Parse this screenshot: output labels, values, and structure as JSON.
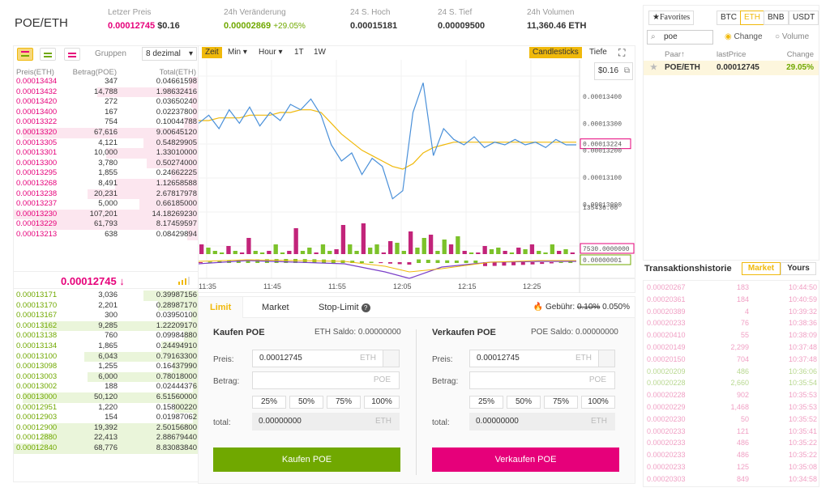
{
  "header": {
    "pair": "POE/ETH",
    "stats": [
      {
        "label": "Letzer Preis",
        "value": "0.00012745",
        "value2": "$0.16"
      },
      {
        "label": "24h Veränderung",
        "value": "0.00002869",
        "value2": "+29.05%"
      },
      {
        "label": "24 S. Hoch",
        "value": "0.00015181"
      },
      {
        "label": "24 S. Tief",
        "value": "0.00009500"
      },
      {
        "label": "24h Volumen",
        "value": "11,360.46 ETH"
      }
    ]
  },
  "orderbook": {
    "groups_label": "Gruppen",
    "decimals": "8 dezimal",
    "headers": [
      "Preis(ETH)",
      "Betrag(POE)",
      "Total(ETH)"
    ],
    "asks": [
      [
        "0.00013434",
        "347",
        "0.04661598",
        0.05
      ],
      [
        "0.00013432",
        "14,788",
        "1.98632416",
        0.55
      ],
      [
        "0.00013420",
        "272",
        "0.03650240",
        0.04
      ],
      [
        "0.00013400",
        "167",
        "0.02237800",
        0.03
      ],
      [
        "0.00013322",
        "754",
        "0.10044788",
        0.08
      ],
      [
        "0.00013320",
        "67,616",
        "9.00645120",
        0.95
      ],
      [
        "0.00013305",
        "4,121",
        "0.54829905",
        0.3
      ],
      [
        "0.00013301",
        "10,000",
        "1.33010000",
        0.5
      ],
      [
        "0.00013300",
        "3,780",
        "0.50274000",
        0.28
      ],
      [
        "0.00013295",
        "1,855",
        "0.24662225",
        0.15
      ],
      [
        "0.00013268",
        "8,491",
        "1.12658588",
        0.45
      ],
      [
        "0.00013238",
        "20,231",
        "2.67817978",
        0.6
      ],
      [
        "0.00013237",
        "5,000",
        "0.66185000",
        0.32
      ],
      [
        "0.00013230",
        "107,201",
        "14.18269230",
        1.0
      ],
      [
        "0.00013229",
        "61,793",
        "8.17459597",
        0.9
      ],
      [
        "0.00013213",
        "638",
        "0.08429894",
        0.06
      ]
    ],
    "last_price": "0.00012745 ↓",
    "bids": [
      [
        "0.00013171",
        "3,036",
        "0.39987156",
        0.3
      ],
      [
        "0.00013170",
        "2,201",
        "0.28987170",
        0.22
      ],
      [
        "0.00013167",
        "300",
        "0.03950100",
        0.04
      ],
      [
        "0.00013162",
        "9,285",
        "1.22209170",
        0.85
      ],
      [
        "0.00013138",
        "760",
        "0.09984880",
        0.08
      ],
      [
        "0.00013134",
        "1,865",
        "0.24494910",
        0.2
      ],
      [
        "0.00013100",
        "6,043",
        "0.79163300",
        0.62
      ],
      [
        "0.00013098",
        "1,255",
        "0.16437990",
        0.14
      ],
      [
        "0.00013003",
        "6,000",
        "0.78018000",
        0.6
      ],
      [
        "0.00013002",
        "188",
        "0.02444376",
        0.03
      ],
      [
        "0.00013000",
        "50,120",
        "6.51560000",
        0.95
      ],
      [
        "0.00012951",
        "1,220",
        "0.15800220",
        0.13
      ],
      [
        "0.00012903",
        "154",
        "0.01987062",
        0.03
      ],
      [
        "0.00012900",
        "19,392",
        "2.50156800",
        0.8
      ],
      [
        "0.00012880",
        "22,413",
        "2.88679440",
        0.85
      ],
      [
        "0.00012840",
        "68,776",
        "8.83083840",
        1.0
      ]
    ]
  },
  "chart": {
    "toolbar": [
      "Zeit",
      "Min ▾",
      "Hour ▾",
      "1T",
      "1W"
    ],
    "candlesticks": "Candlesticks",
    "depth": "Tiefe",
    "usd_tag": "$0.16",
    "price_labels": [
      "0.00013400",
      "0.00013300",
      "0.00013224",
      "0.00013200",
      "0.00013100",
      "0.00013000"
    ],
    "vol_labels": [
      "135436.00",
      "7530.0000000"
    ],
    "macd_label": "0.00000001",
    "time_labels": [
      "11:35",
      "11:45",
      "11:55",
      "12:05",
      "12:15",
      "12:25"
    ],
    "price": [
      0.000133,
      0.0001333,
      0.0001328,
      0.0001335,
      0.000133,
      0.0001336,
      0.0001329,
      0.0001334,
      0.0001331,
      0.0001337,
      0.0001335,
      0.0001339,
      0.0001333,
      0.0001322,
      0.0001316,
      0.0001319,
      0.0001311,
      0.0001317,
      0.0001314,
      0.0001302,
      0.0001305,
      0.0001334,
      0.0001345,
      0.0001318,
      0.0001328,
      0.0001324,
      0.0001322,
      0.0001325,
      0.0001321,
      0.0001323,
      0.0001322,
      0.0001324,
      0.0001322,
      0.0001323,
      0.0001321,
      0.0001324,
      0.0001322,
      0.0001322
    ],
    "ma": [
      0.0001331,
      0.0001331,
      0.0001332,
      0.0001332,
      0.0001332,
      0.0001333,
      0.0001333,
      0.0001333,
      0.0001334,
      0.0001334,
      0.0001335,
      0.0001335,
      0.0001334,
      0.000133,
      0.0001326,
      0.0001323,
      0.000132,
      0.0001318,
      0.0001316,
      0.0001314,
      0.0001313,
      0.0001315,
      0.0001319,
      0.0001321,
      0.0001322,
      0.0001323,
      0.0001323,
      0.0001323,
      0.0001323,
      0.0001323,
      0.0001323,
      0.0001323,
      0.0001323,
      0.0001323,
      0.0001323,
      0.0001323,
      0.0001323,
      0.0001323
    ],
    "volumes": [
      [
        0.3,
        "r"
      ],
      [
        0.2,
        "g"
      ],
      [
        0.1,
        "g"
      ],
      [
        0.05,
        "g"
      ],
      [
        0.25,
        "r"
      ],
      [
        0.1,
        "g"
      ],
      [
        0.05,
        "r"
      ],
      [
        0.5,
        "r"
      ],
      [
        0.1,
        "g"
      ],
      [
        0.05,
        "g"
      ],
      [
        0.1,
        "r"
      ],
      [
        0.3,
        "g"
      ],
      [
        0.05,
        "g"
      ],
      [
        0.1,
        "r"
      ],
      [
        0.8,
        "r"
      ],
      [
        0.1,
        "g"
      ],
      [
        0.2,
        "g"
      ],
      [
        0.05,
        "r"
      ],
      [
        0.3,
        "g"
      ],
      [
        0.1,
        "g"
      ],
      [
        0.15,
        "r"
      ],
      [
        0.9,
        "r"
      ],
      [
        0.3,
        "g"
      ],
      [
        0.1,
        "g"
      ],
      [
        0.95,
        "r"
      ],
      [
        0.2,
        "g"
      ],
      [
        0.3,
        "g"
      ],
      [
        0.05,
        "r"
      ],
      [
        0.4,
        "r"
      ],
      [
        0.35,
        "g"
      ],
      [
        0.1,
        "g"
      ],
      [
        0.7,
        "r"
      ],
      [
        0.2,
        "g"
      ],
      [
        0.5,
        "g"
      ],
      [
        0.6,
        "r"
      ],
      [
        0.1,
        "g"
      ],
      [
        0.45,
        "g"
      ],
      [
        0.3,
        "r"
      ],
      [
        0.55,
        "g"
      ],
      [
        0.1,
        "r"
      ],
      [
        0.05,
        "g"
      ],
      [
        0.05,
        "r"
      ],
      [
        0.25,
        "r"
      ],
      [
        0.15,
        "g"
      ],
      [
        0.2,
        "g"
      ],
      [
        0.1,
        "r"
      ],
      [
        0.05,
        "g"
      ],
      [
        0.2,
        "r"
      ],
      [
        0.15,
        "g"
      ],
      [
        0.3,
        "r"
      ],
      [
        0.1,
        "g"
      ],
      [
        0.05,
        "g"
      ],
      [
        0.3,
        "g"
      ],
      [
        0.1,
        "r"
      ],
      [
        0.15,
        "g"
      ],
      [
        0.05,
        "r"
      ]
    ]
  },
  "form": {
    "tabs": [
      "Limit",
      "Market",
      "Stop-Limit"
    ],
    "fee_label": "Gebühr:",
    "fee_old": "0.10%",
    "fee_new": "0.050%",
    "buy": {
      "title": "Kaufen POE",
      "saldo": "ETH Saldo: 0.00000000",
      "price_label": "Preis:",
      "price": "0.00012745",
      "unit": "ETH",
      "amount_label": "Betrag:",
      "amount_unit": "POE",
      "percents": [
        "25%",
        "50%",
        "75%",
        "100%"
      ],
      "total_label": "total:",
      "total": "0.00000000",
      "total_unit": "ETH",
      "button": "Kaufen POE"
    },
    "sell": {
      "title": "Verkaufen POE",
      "saldo": "POE Saldo: 0.00000000",
      "price_label": "Preis:",
      "price": "0.00012745",
      "unit": "ETH",
      "amount_label": "Betrag:",
      "amount_unit": "POE",
      "percents": [
        "25%",
        "50%",
        "75%",
        "100%"
      ],
      "total_label": "total:",
      "total": "0.00000000",
      "total_unit": "ETH",
      "button": "Verkaufen POE"
    }
  },
  "markets": {
    "favorites": "★Favorites",
    "tabs": [
      "BTC",
      "ETH",
      "BNB",
      "USDT"
    ],
    "search": "poe",
    "radio_change": "Change",
    "radio_volume": "Volume",
    "headers": [
      "Paar↑",
      "lastPrice",
      "Change"
    ],
    "row": {
      "pair": "POE/ETH",
      "price": "0.00012745",
      "change": "29.05%"
    }
  },
  "history": {
    "title": "Transaktionshistorie",
    "tab_market": "Market",
    "tab_yours": "Yours",
    "rows": [
      [
        "0.00020267",
        "183",
        "10:44:50",
        "r"
      ],
      [
        "0.00020361",
        "184",
        "10:40:59",
        "r"
      ],
      [
        "0.00020389",
        "4",
        "10:39:32",
        "r"
      ],
      [
        "0.00020233",
        "76",
        "10:38:36",
        "r"
      ],
      [
        "0.00020410",
        "55",
        "10:38:09",
        "r"
      ],
      [
        "0.00020149",
        "2,299",
        "10:37:48",
        "r"
      ],
      [
        "0.00020150",
        "704",
        "10:37:48",
        "r"
      ],
      [
        "0.00020209",
        "486",
        "10:36:06",
        "g"
      ],
      [
        "0.00020228",
        "2,660",
        "10:35:54",
        "g"
      ],
      [
        "0.00020228",
        "902",
        "10:35:53",
        "r"
      ],
      [
        "0.00020229",
        "1,468",
        "10:35:53",
        "r"
      ],
      [
        "0.00020230",
        "50",
        "10:35:52",
        "r"
      ],
      [
        "0.00020233",
        "121",
        "10:35:41",
        "r"
      ],
      [
        "0.00020233",
        "486",
        "10:35:22",
        "r"
      ],
      [
        "0.00020233",
        "486",
        "10:35:22",
        "r"
      ],
      [
        "0.00020233",
        "125",
        "10:35:08",
        "r"
      ],
      [
        "0.00020303",
        "849",
        "10:34:58",
        "r"
      ]
    ]
  }
}
